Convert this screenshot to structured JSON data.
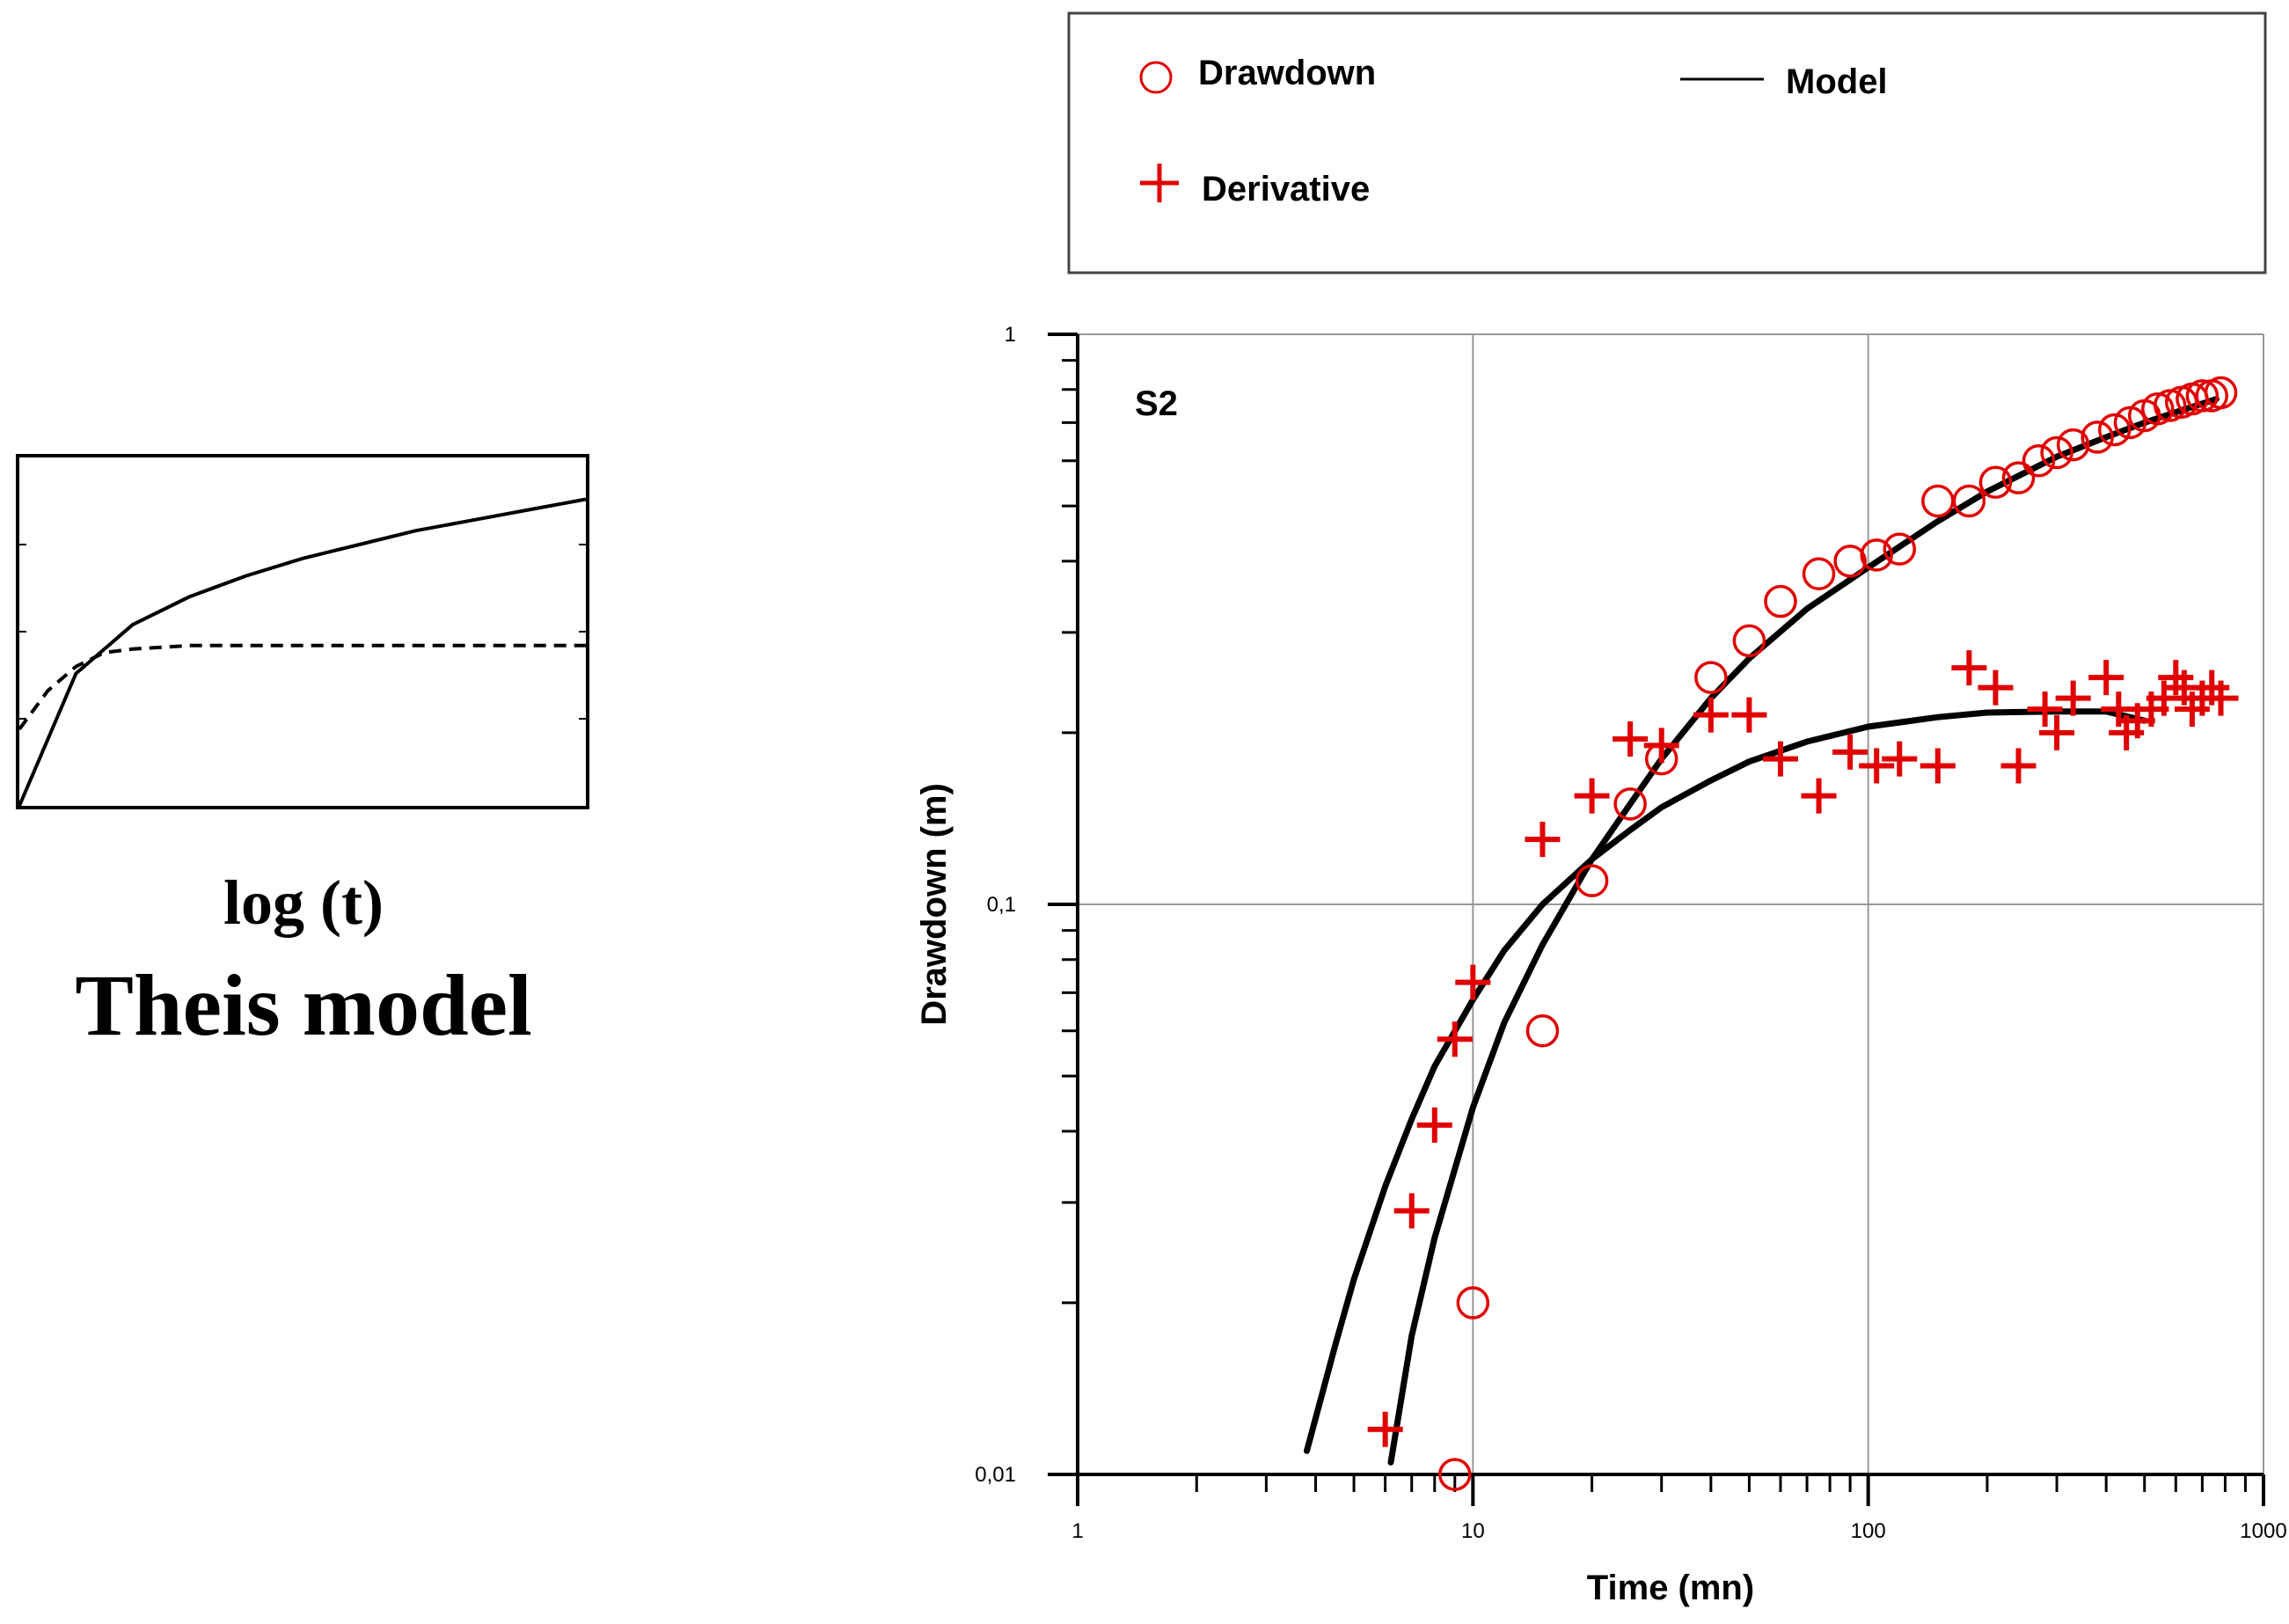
{
  "chart_data": [
    {
      "type": "line",
      "title": "Theis model",
      "xlabel": "log (t)",
      "ylabel": "",
      "series": [
        {
          "name": "drawdown",
          "style": "solid",
          "x": [
            0.0,
            0.1,
            0.2,
            0.3,
            0.4,
            0.5,
            0.6,
            0.7,
            0.8,
            0.9,
            1.0
          ],
          "y": [
            0.0,
            0.38,
            0.52,
            0.6,
            0.66,
            0.71,
            0.75,
            0.79,
            0.82,
            0.85,
            0.88
          ]
        },
        {
          "name": "derivative",
          "style": "dashed",
          "x": [
            0.0,
            0.05,
            0.1,
            0.15,
            0.2,
            0.3,
            0.4,
            0.6,
            1.0
          ],
          "y": [
            0.22,
            0.33,
            0.4,
            0.44,
            0.45,
            0.46,
            0.46,
            0.46,
            0.46
          ]
        }
      ]
    },
    {
      "type": "scatter",
      "title": "S2",
      "xlabel": "Time (mn)",
      "ylabel": "Drawdown (m)",
      "xscale": "log",
      "yscale": "log",
      "xlim": [
        1,
        1000
      ],
      "ylim": [
        0.01,
        1
      ],
      "xticks": [
        {
          "v": 1,
          "label": "1"
        },
        {
          "v": 10,
          "label": "10"
        },
        {
          "v": 100,
          "label": "100"
        },
        {
          "v": 1000,
          "label": "1000"
        }
      ],
      "yticks": [
        {
          "v": 0.01,
          "label": "0,01"
        },
        {
          "v": 0.1,
          "label": "0,1"
        },
        {
          "v": 1,
          "label": "1"
        }
      ],
      "grid": true,
      "legend": {
        "position": "top",
        "entries": [
          {
            "label": "Drawdown",
            "marker": "circle",
            "color": "#e00000"
          },
          {
            "label": "Model",
            "marker": "line",
            "color": "#000000"
          },
          {
            "label": "Derivative",
            "marker": "plus",
            "color": "#e00000"
          }
        ]
      },
      "series": [
        {
          "name": "Drawdown",
          "marker": "circle",
          "color": "#e00000",
          "x": [
            9,
            10,
            15,
            20,
            25,
            30,
            40,
            50,
            60,
            75,
            90,
            105,
            120,
            150,
            180,
            210,
            240,
            270,
            300,
            330,
            380,
            420,
            460,
            500,
            540,
            580,
            620,
            660,
            700,
            740,
            780
          ],
          "y": [
            0.01,
            0.02,
            0.06,
            0.11,
            0.15,
            0.18,
            0.25,
            0.29,
            0.34,
            0.38,
            0.4,
            0.41,
            0.42,
            0.51,
            0.51,
            0.55,
            0.56,
            0.6,
            0.62,
            0.64,
            0.66,
            0.68,
            0.7,
            0.72,
            0.74,
            0.75,
            0.76,
            0.77,
            0.78,
            0.78,
            0.79
          ]
        },
        {
          "name": "Derivative",
          "marker": "plus",
          "color": "#e00000",
          "x": [
            6,
            7,
            8,
            9,
            10,
            15,
            20,
            25,
            30,
            40,
            50,
            60,
            75,
            90,
            105,
            120,
            150,
            180,
            210,
            240,
            280,
            300,
            330,
            400,
            430,
            450,
            480,
            520,
            560,
            600,
            630,
            660,
            700,
            740,
            780
          ],
          "y": [
            0.012,
            0.029,
            0.041,
            0.058,
            0.073,
            0.13,
            0.155,
            0.195,
            0.19,
            0.215,
            0.215,
            0.18,
            0.155,
            0.185,
            0.175,
            0.18,
            0.175,
            0.26,
            0.24,
            0.175,
            0.22,
            0.2,
            0.23,
            0.25,
            0.22,
            0.2,
            0.21,
            0.22,
            0.23,
            0.25,
            0.24,
            0.22,
            0.23,
            0.24,
            0.23
          ]
        },
        {
          "name": "Model drawdown",
          "type": "line",
          "color": "#000000",
          "x": [
            6.2,
            7,
            8,
            10,
            12,
            15,
            20,
            25,
            30,
            40,
            50,
            70,
            100,
            150,
            200,
            300,
            400,
            500,
            600,
            760
          ],
          "y": [
            0.0105,
            0.0175,
            0.026,
            0.044,
            0.062,
            0.085,
            0.12,
            0.15,
            0.18,
            0.23,
            0.27,
            0.33,
            0.39,
            0.47,
            0.53,
            0.61,
            0.66,
            0.7,
            0.73,
            0.77
          ]
        },
        {
          "name": "Model derivative",
          "type": "line",
          "color": "#000000",
          "x": [
            3.8,
            4.5,
            5,
            6,
            7,
            8,
            10,
            12,
            15,
            20,
            25,
            30,
            40,
            50,
            70,
            100,
            150,
            200,
            300,
            400,
            500
          ],
          "y": [
            0.011,
            0.017,
            0.022,
            0.032,
            0.042,
            0.052,
            0.068,
            0.083,
            0.1,
            0.12,
            0.135,
            0.148,
            0.165,
            0.178,
            0.193,
            0.205,
            0.213,
            0.217,
            0.218,
            0.218,
            0.21
          ]
        }
      ]
    }
  ]
}
